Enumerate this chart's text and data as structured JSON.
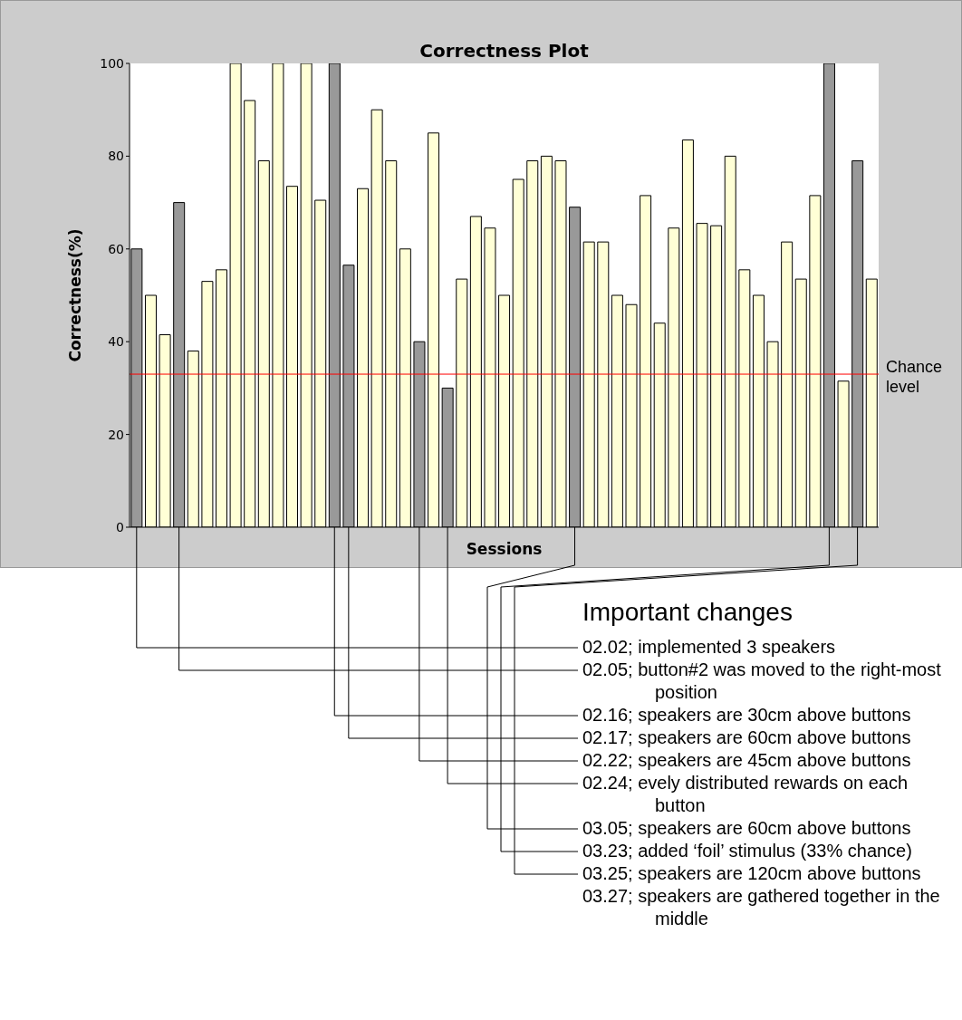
{
  "chart_data": {
    "type": "bar",
    "title": "Correctness Plot",
    "xlabel": "Sessions",
    "ylabel": "Correctness(%)",
    "categories": [
      null,
      null,
      null,
      null,
      null,
      null,
      null,
      null,
      null,
      null,
      null,
      null,
      null,
      null,
      null,
      null,
      null,
      null,
      null,
      null,
      null,
      null,
      null,
      null,
      null,
      null,
      null,
      null,
      null,
      null,
      null,
      null,
      null,
      null,
      null,
      null,
      null,
      null,
      null,
      null,
      null,
      null,
      null,
      null,
      null,
      null,
      null,
      null,
      null,
      null,
      null,
      null,
      null
    ],
    "values": [
      60,
      50,
      41.5,
      70,
      38,
      53,
      55.5,
      100,
      92,
      79,
      100,
      73.5,
      100,
      70.5,
      100,
      56.5,
      73,
      90,
      79,
      60,
      40,
      85,
      30,
      53.5,
      67,
      64.5,
      50,
      75,
      79,
      80,
      79,
      69,
      61.5,
      61.5,
      50,
      48,
      71.5,
      44,
      64.5,
      83.5,
      65.5,
      65,
      80,
      55.5,
      50,
      40,
      61.5,
      53.5,
      71.5,
      100,
      31.5,
      79,
      53.5
    ],
    "colors": [
      "#999999",
      "#ffffd6",
      "#ffffd6",
      "#999999",
      "#ffffd6",
      "#ffffd6",
      "#ffffd6",
      "#ffffd6",
      "#ffffd6",
      "#ffffd6",
      "#ffffd6",
      "#ffffd6",
      "#ffffd6",
      "#ffffd6",
      "#999999",
      "#999999",
      "#ffffd6",
      "#ffffd6",
      "#ffffd6",
      "#ffffd6",
      "#999999",
      "#ffffd6",
      "#999999",
      "#ffffd6",
      "#ffffd6",
      "#ffffd6",
      "#ffffd6",
      "#ffffd6",
      "#ffffd6",
      "#ffffd6",
      "#ffffd6",
      "#999999",
      "#ffffd6",
      "#ffffd6",
      "#ffffd6",
      "#ffffd6",
      "#ffffd6",
      "#ffffd6",
      "#ffffd6",
      "#ffffd6",
      "#ffffd6",
      "#ffffd6",
      "#ffffd6",
      "#ffffd6",
      "#ffffd6",
      "#ffffd6",
      "#ffffd6",
      "#ffffd6",
      "#ffffd6",
      "#999999",
      "#ffffd6",
      "#999999",
      "#ffffd6"
    ],
    "ylim": [
      0,
      100
    ],
    "yticks": [
      0,
      20,
      40,
      60,
      80,
      100
    ],
    "ref_lines": [
      {
        "axis": "y",
        "value": 33,
        "label": "Chance level",
        "color": "#ff0000"
      }
    ],
    "annotations": [
      "Important changes",
      "02.02; implemented 3 speakers",
      "02.05; button#2 was moved to the right-most position",
      "02.16; speakers are 30cm above buttons",
      "02.17; speakers are 60cm above buttons",
      "02.22; speakers are 45cm above buttons",
      "02.24; evely distributed rewards on each button",
      "03.05; speakers are 60cm above buttons",
      "03.23; added ‘foil’ stimulus (33% chance)",
      "03.25; speakers are 120cm above buttons",
      "03.27; speakers are gathered together in the middle"
    ]
  }
}
